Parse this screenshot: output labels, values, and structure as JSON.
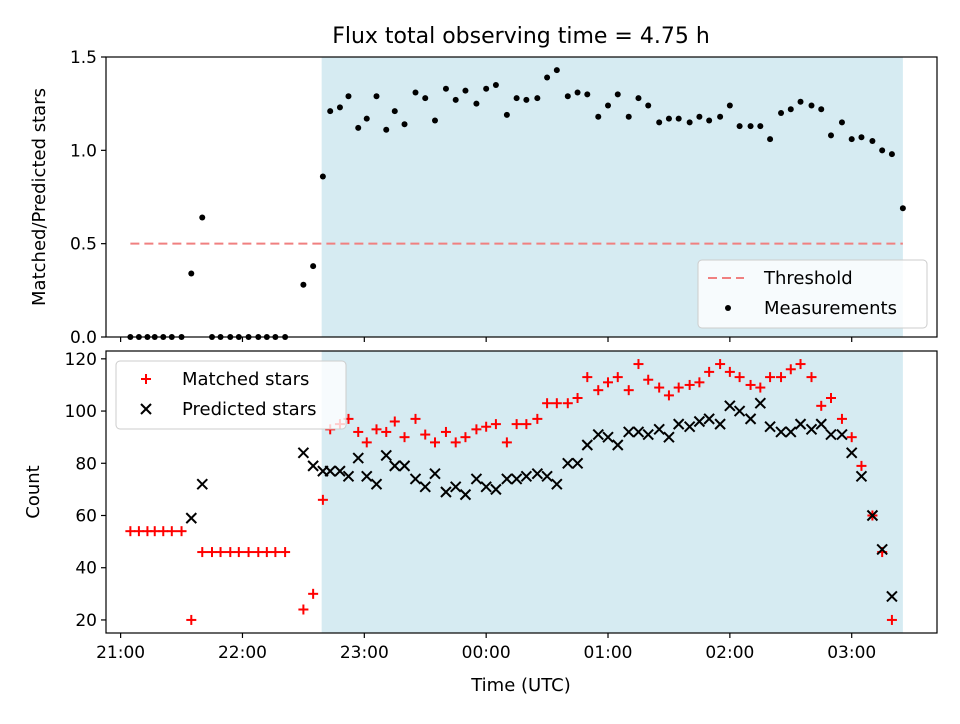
{
  "chart_data": [
    {
      "type": "scatter",
      "title": "Flux total observing time = 4.75 h",
      "ylabel": "Matched/Predicted stars",
      "xlabel": "",
      "xlim": [
        20.88,
        27.7
      ],
      "ylim": [
        0,
        1.5
      ],
      "yticks": [
        {
          "v": 0,
          "label": "0.0"
        },
        {
          "v": 0.5,
          "label": "0.5"
        },
        {
          "v": 1.0,
          "label": "1.0"
        },
        {
          "v": 1.5,
          "label": "1.5"
        }
      ],
      "xticks": [
        21,
        22,
        23,
        24,
        25,
        26,
        27
      ],
      "shaded_region": {
        "x0": 22.65,
        "x1": 27.42,
        "color": "#add8e6"
      },
      "legend": {
        "position": "lower right",
        "entries": [
          {
            "label": "Threshold",
            "series": "threshold"
          },
          {
            "label": "Measurements",
            "series": "measurements"
          }
        ]
      },
      "series": [
        {
          "name": "Threshold",
          "kind": "hline",
          "x0": 21.08,
          "x1": 27.42,
          "y": 0.5,
          "color": "#f08080"
        },
        {
          "name": "Measurements",
          "kind": "points",
          "color": "#000000",
          "x": [
            21.08,
            21.15,
            21.22,
            21.28,
            21.35,
            21.42,
            21.5,
            21.58,
            21.67,
            21.75,
            21.82,
            21.9,
            21.97,
            22.05,
            22.13,
            22.2,
            22.27,
            22.35,
            22.5,
            22.58,
            22.66,
            22.72,
            22.8,
            22.87,
            22.95,
            23.02,
            23.1,
            23.18,
            23.25,
            23.33,
            23.42,
            23.5,
            23.58,
            23.67,
            23.75,
            23.83,
            23.92,
            24.0,
            24.08,
            24.17,
            24.25,
            24.33,
            24.42,
            24.5,
            24.58,
            24.67,
            24.75,
            24.83,
            24.92,
            25.0,
            25.08,
            25.17,
            25.25,
            25.33,
            25.42,
            25.5,
            25.58,
            25.67,
            25.75,
            25.83,
            25.92,
            26.0,
            26.08,
            26.17,
            26.25,
            26.33,
            26.42,
            26.5,
            26.58,
            26.67,
            26.75,
            26.83,
            26.92,
            27.0,
            27.08,
            27.17,
            27.25,
            27.33,
            27.42
          ],
          "y": [
            0,
            0,
            0,
            0,
            0,
            0,
            0,
            0.34,
            0.64,
            0,
            0,
            0,
            0,
            0,
            0,
            0,
            0,
            0,
            0.28,
            0.38,
            0.86,
            1.21,
            1.23,
            1.29,
            1.12,
            1.17,
            1.29,
            1.11,
            1.21,
            1.14,
            1.31,
            1.28,
            1.16,
            1.33,
            1.27,
            1.32,
            1.25,
            1.33,
            1.35,
            1.19,
            1.28,
            1.27,
            1.28,
            1.39,
            1.43,
            1.29,
            1.31,
            1.3,
            1.18,
            1.24,
            1.3,
            1.18,
            1.28,
            1.24,
            1.15,
            1.17,
            1.17,
            1.15,
            1.18,
            1.16,
            1.18,
            1.24,
            1.13,
            1.13,
            1.13,
            1.06,
            1.2,
            1.22,
            1.26,
            1.24,
            1.22,
            1.08,
            1.15,
            1.06,
            1.07,
            1.05,
            1.0,
            0.98,
            0.69
          ]
        }
      ]
    },
    {
      "type": "scatter",
      "title": "",
      "ylabel": "Count",
      "xlabel": "Time (UTC)",
      "xlim": [
        20.88,
        27.7
      ],
      "ylim": [
        15,
        123
      ],
      "yticks": [
        {
          "v": 20,
          "label": "20"
        },
        {
          "v": 40,
          "label": "40"
        },
        {
          "v": 60,
          "label": "60"
        },
        {
          "v": 80,
          "label": "80"
        },
        {
          "v": 100,
          "label": "100"
        },
        {
          "v": 120,
          "label": "120"
        }
      ],
      "xticks": [
        21,
        22,
        23,
        24,
        25,
        26,
        27
      ],
      "xtick_labels": [
        "21:00",
        "22:00",
        "23:00",
        "00:00",
        "01:00",
        "02:00",
        "03:00"
      ],
      "shaded_region": {
        "x0": 22.65,
        "x1": 27.42,
        "color": "#add8e6"
      },
      "legend": {
        "position": "upper left",
        "entries": [
          {
            "label": "Matched stars",
            "series": "matched"
          },
          {
            "label": "Predicted stars",
            "series": "predicted"
          }
        ]
      },
      "series": [
        {
          "name": "Matched stars",
          "marker": "plus",
          "color": "#ff0000",
          "x": [
            21.08,
            21.15,
            21.22,
            21.28,
            21.35,
            21.42,
            21.5,
            21.58,
            21.67,
            21.75,
            21.82,
            21.9,
            21.97,
            22.05,
            22.13,
            22.2,
            22.27,
            22.35,
            22.5,
            22.58,
            22.66,
            22.72,
            22.8,
            22.87,
            22.95,
            23.02,
            23.1,
            23.18,
            23.25,
            23.33,
            23.42,
            23.5,
            23.58,
            23.67,
            23.75,
            23.83,
            23.92,
            24.0,
            24.08,
            24.17,
            24.25,
            24.33,
            24.42,
            24.5,
            24.58,
            24.67,
            24.75,
            24.83,
            24.92,
            25.0,
            25.08,
            25.17,
            25.25,
            25.33,
            25.42,
            25.5,
            25.58,
            25.67,
            25.75,
            25.83,
            25.92,
            26.0,
            26.08,
            26.17,
            26.25,
            26.33,
            26.42,
            26.5,
            26.58,
            26.67,
            26.75,
            26.83,
            26.92,
            27.0,
            27.08,
            27.17,
            27.25,
            27.33,
            27.42
          ],
          "y": [
            54,
            54,
            54,
            54,
            54,
            54,
            54,
            20,
            46,
            46,
            46,
            46,
            46,
            46,
            46,
            46,
            46,
            46,
            24,
            30,
            66,
            93,
            95,
            97,
            92,
            88,
            93,
            92,
            96,
            90,
            97,
            91,
            88,
            92,
            88,
            90,
            93,
            94,
            95,
            88,
            95,
            95,
            97,
            103,
            103,
            103,
            105,
            113,
            108,
            111,
            113,
            108,
            118,
            112,
            109,
            106,
            109,
            110,
            111,
            115,
            118,
            115,
            113,
            110,
            109,
            113,
            113,
            116,
            118,
            113,
            102,
            105,
            97,
            90,
            79,
            60,
            46,
            20,
            null
          ],
          "y_note": ""
        },
        {
          "name": "Predicted stars",
          "marker": "x",
          "color": "#000000",
          "x": [
            21.58,
            21.67,
            22.5,
            22.58,
            22.66,
            22.72,
            22.8,
            22.87,
            22.95,
            23.02,
            23.1,
            23.18,
            23.25,
            23.33,
            23.42,
            23.5,
            23.58,
            23.67,
            23.75,
            23.83,
            23.92,
            24.0,
            24.08,
            24.17,
            24.25,
            24.33,
            24.42,
            24.5,
            24.58,
            24.67,
            24.75,
            24.83,
            24.92,
            25.0,
            25.08,
            25.17,
            25.25,
            25.33,
            25.42,
            25.5,
            25.58,
            25.67,
            25.75,
            25.83,
            25.92,
            26.0,
            26.08,
            26.17,
            26.25,
            26.33,
            26.42,
            26.5,
            26.58,
            26.67,
            26.75,
            26.83,
            26.92,
            27.0,
            27.08,
            27.17,
            27.25,
            27.33,
            27.42
          ],
          "y": [
            59,
            72,
            84,
            79,
            77,
            77,
            77,
            75,
            82,
            75,
            72,
            83,
            79,
            79,
            74,
            71,
            76,
            69,
            71,
            68,
            74,
            71,
            70,
            74,
            74,
            75,
            76,
            75,
            72,
            80,
            80,
            87,
            91,
            90,
            87,
            92,
            92,
            91,
            93,
            90,
            95,
            94,
            96,
            97,
            95,
            102,
            100,
            97,
            103,
            94,
            92,
            92,
            95,
            93,
            95,
            91,
            91,
            84,
            75,
            60,
            47,
            29,
            null
          ]
        }
      ]
    }
  ]
}
